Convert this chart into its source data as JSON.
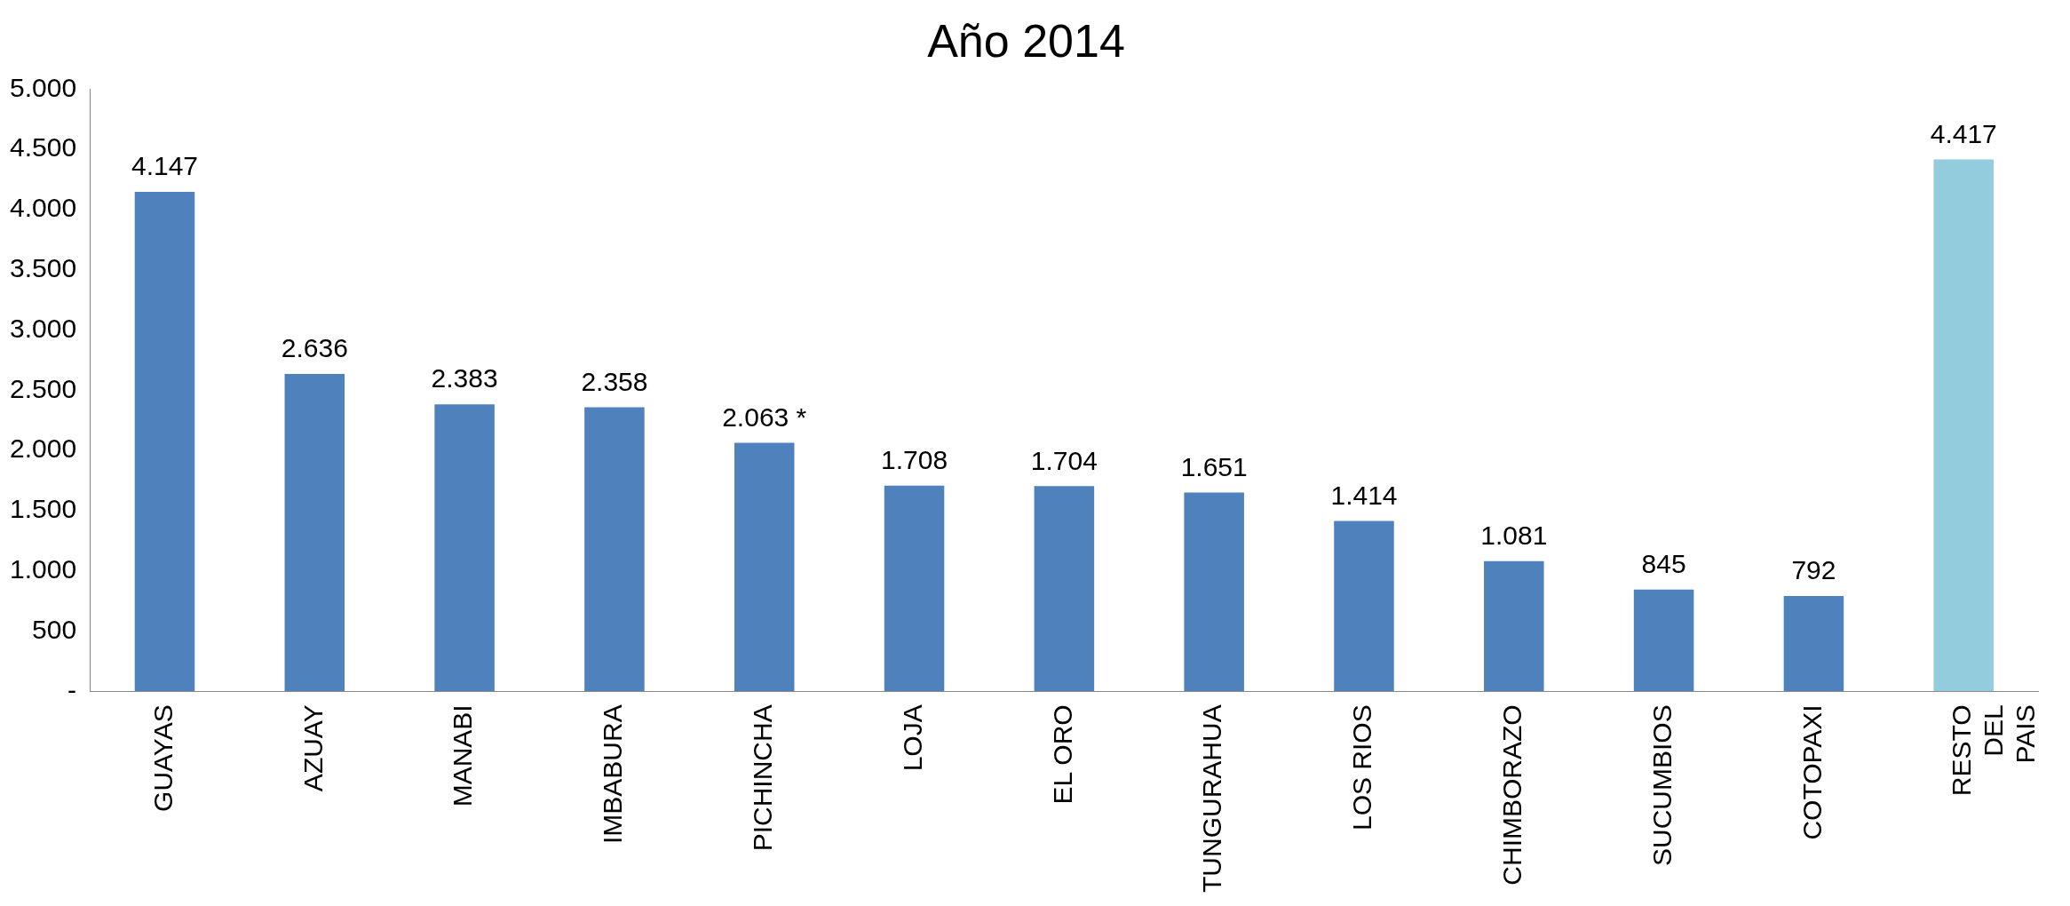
{
  "chart_data": {
    "type": "bar",
    "title": "Año 2014",
    "categories": [
      "GUAYAS",
      "AZUAY",
      "MANABI",
      "IMBABURA",
      "PICHINCHA",
      "LOJA",
      "EL ORO",
      "TUNGURAHUA",
      "LOS RIOS",
      "CHIMBORAZO",
      "SUCUMBIOS",
      "COTOPAXI",
      "RESTO\nDEL\nPAIS"
    ],
    "values": [
      4147,
      2636,
      2383,
      2358,
      2063,
      1708,
      1704,
      1651,
      1414,
      1081,
      845,
      792,
      4417
    ],
    "colors": [
      "#4f81bd",
      "#4f81bd",
      "#4f81bd",
      "#4f81bd",
      "#4f81bd",
      "#4f81bd",
      "#4f81bd",
      "#4f81bd",
      "#4f81bd",
      "#4f81bd",
      "#4f81bd",
      "#4f81bd",
      "#93cddd"
    ],
    "value_labels": [
      "4.147",
      "2.636",
      "2.383",
      "2.358",
      "2.063 *",
      "1.708",
      "1.704",
      "1.651",
      "1.414",
      "1.081",
      "845",
      "792",
      "4.417"
    ],
    "ylim": [
      0,
      5000
    ],
    "yticks": [
      {
        "value": 0,
        "label": "-"
      },
      {
        "value": 500,
        "label": "500"
      },
      {
        "value": 1000,
        "label": "1.000"
      },
      {
        "value": 1500,
        "label": "1.500"
      },
      {
        "value": 2000,
        "label": "2.000"
      },
      {
        "value": 2500,
        "label": "2.500"
      },
      {
        "value": 3000,
        "label": "3.000"
      },
      {
        "value": 3500,
        "label": "3.500"
      },
      {
        "value": 4000,
        "label": "4.000"
      },
      {
        "value": 4500,
        "label": "4.500"
      },
      {
        "value": 5000,
        "label": "5.000"
      }
    ],
    "grid": false,
    "legend": false
  }
}
